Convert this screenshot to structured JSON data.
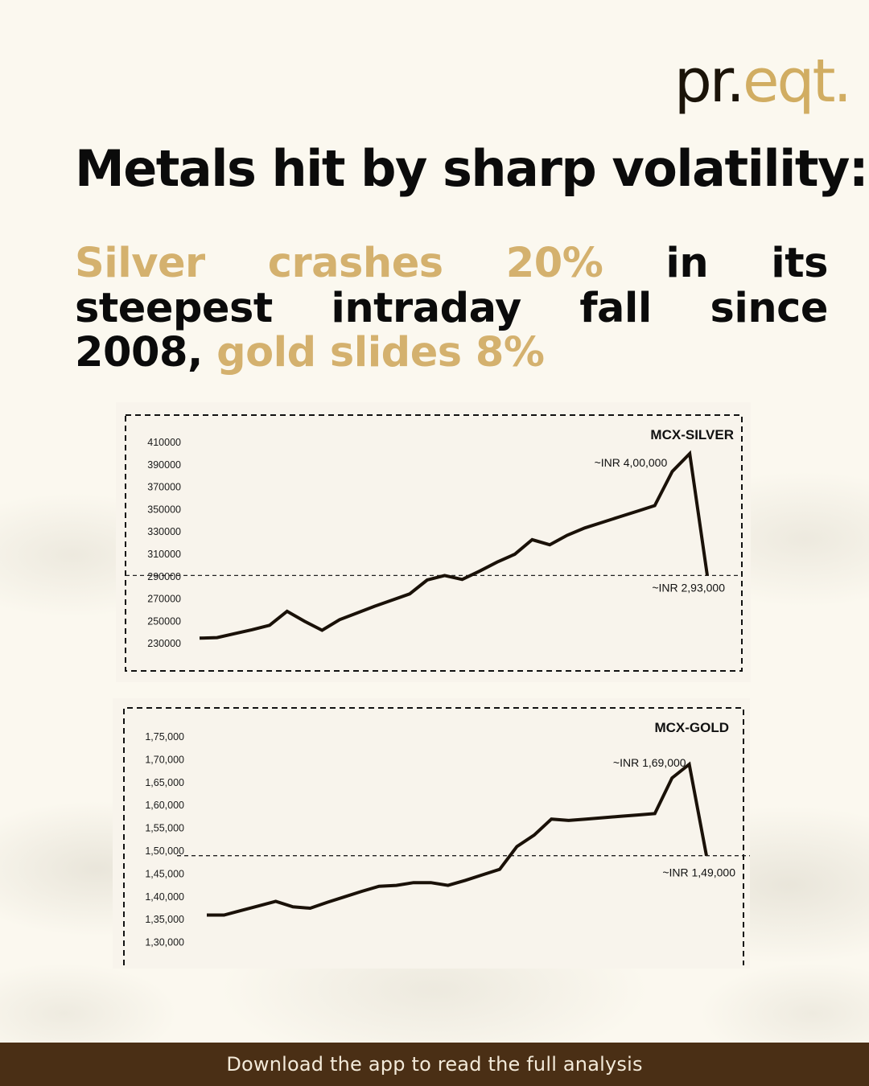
{
  "brand": {
    "logo_dark": "pr.",
    "logo_gold": "eqt."
  },
  "headline": "Metals hit by sharp volatility:",
  "subheadline": {
    "part1_gold": "Silver crashes 20%",
    "part2": " in its steepest intraday fall since 2008, ",
    "part3_gold": "gold slides 8%"
  },
  "footer": {
    "cta": "Download the app to read the full analysis"
  },
  "colors": {
    "background": "#fbf8ef",
    "accent_gold": "#d4b16e",
    "text_dark": "#0b0b0b",
    "footer_bg": "#4a2f15",
    "line": "#1a1108"
  },
  "chart_data": [
    {
      "type": "line",
      "title": "MCX-SILVER",
      "y_ticks": [
        "410000",
        "390000",
        "370000",
        "350000",
        "330000",
        "310000",
        "290000",
        "270000",
        "250000",
        "230000"
      ],
      "ylim": [
        230000,
        410000
      ],
      "reference_line": 291000,
      "grid": false,
      "series": [
        {
          "values": [
            235000,
            235500,
            239000,
            242500,
            246500,
            259000,
            250000,
            242000,
            251500,
            257500,
            263500,
            269000,
            274500,
            287000,
            291000,
            287500,
            295000,
            303000,
            310000,
            323000,
            318500,
            327000,
            333500,
            338500,
            343500,
            348500,
            353500,
            384000,
            400000,
            291000
          ]
        }
      ],
      "annotations": [
        {
          "text": "~INR 4,00,000",
          "point_index": 28
        },
        {
          "text": "~INR 2,93,000",
          "point_index": 29
        }
      ]
    },
    {
      "type": "line",
      "title": "MCX-GOLD",
      "y_ticks": [
        "1,75,000",
        "1,70,000",
        "1,65,000",
        "1,60,000",
        "1,55,000",
        "1,50,000",
        "1,45,000",
        "1,40,000",
        "1,35,000",
        "1,30,000"
      ],
      "ylim": [
        130000,
        175000
      ],
      "reference_line": 149000,
      "grid": false,
      "series": [
        {
          "values": [
            136000,
            136000,
            137000,
            138000,
            139000,
            137800,
            137500,
            138800,
            140000,
            141200,
            142300,
            142500,
            143100,
            143100,
            142500,
            143600,
            144800,
            146000,
            151000,
            153500,
            157000,
            156700,
            157000,
            157300,
            157600,
            157900,
            158200,
            166000,
            169000,
            149000
          ]
        }
      ],
      "annotations": [
        {
          "text": "~INR 1,69,000",
          "point_index": 28
        },
        {
          "text": "~INR 1,49,000",
          "point_index": 29
        }
      ]
    }
  ]
}
